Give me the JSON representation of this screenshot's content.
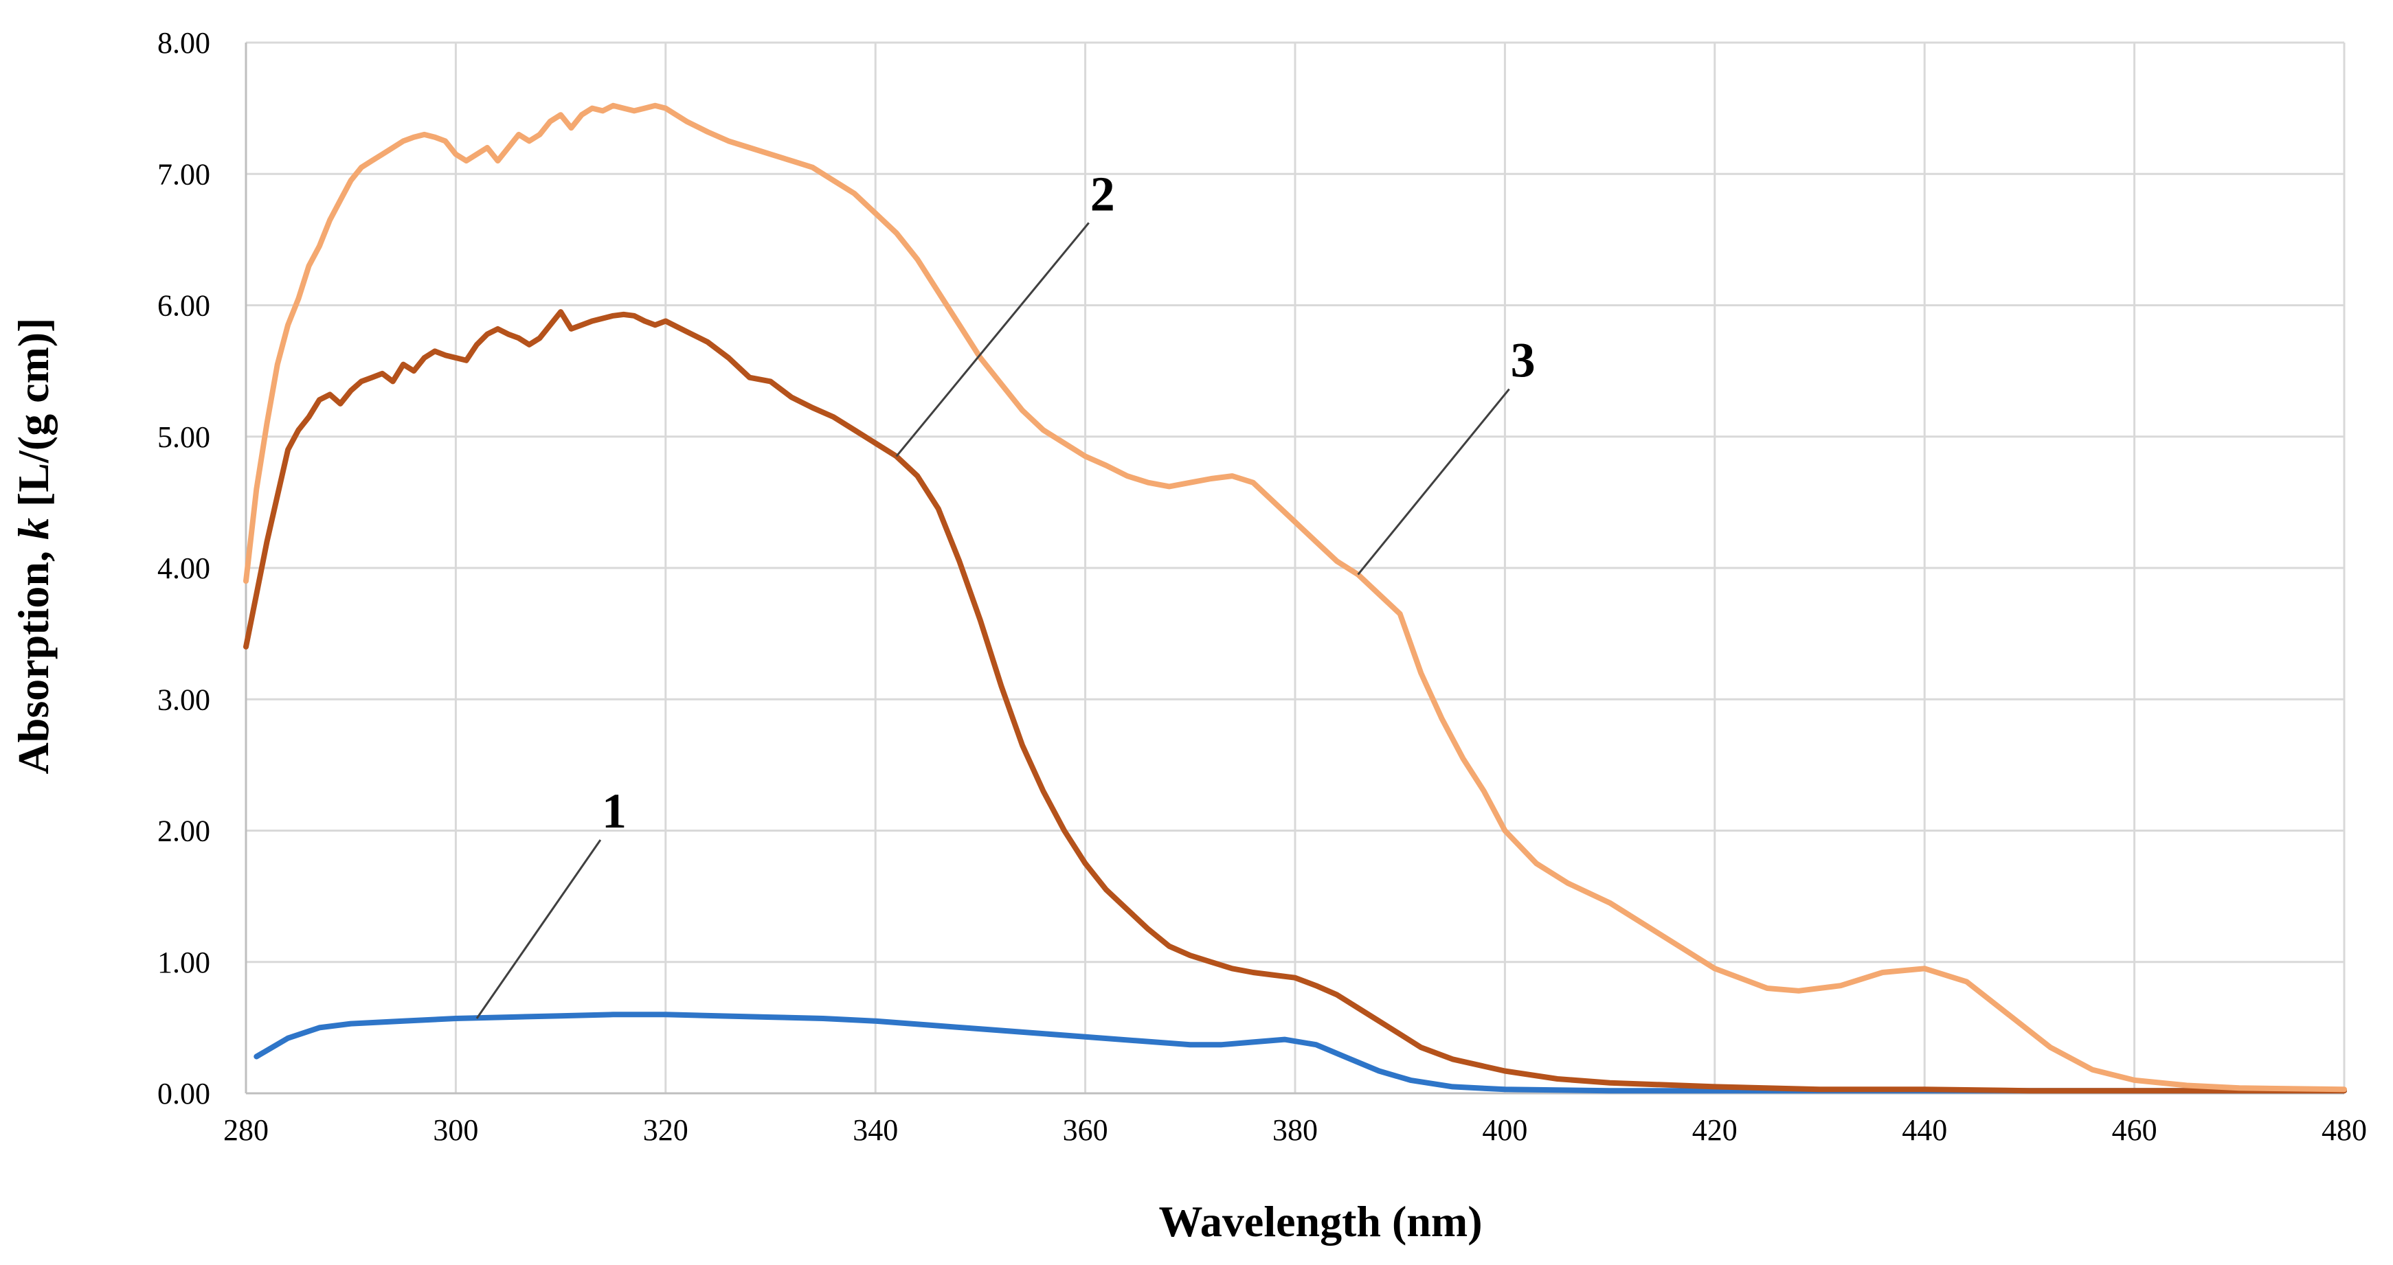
{
  "chart_data": {
    "type": "line",
    "title": "",
    "xlabel": "Wavelength (nm)",
    "ylabel_prefix": "Absorption, ",
    "ylabel_var": "k",
    "ylabel_suffix": " [L/(g cm)]",
    "xlim": [
      280,
      480
    ],
    "ylim": [
      0,
      8
    ],
    "xticks": [
      280,
      300,
      320,
      340,
      360,
      380,
      400,
      420,
      440,
      460,
      480
    ],
    "yticks": [
      0,
      1,
      2,
      3,
      4,
      5,
      6,
      7,
      8
    ],
    "xtick_labels": [
      "280",
      "300",
      "320",
      "340",
      "360",
      "380",
      "400",
      "420",
      "440",
      "460",
      "480"
    ],
    "ytick_labels": [
      "0.00",
      "1.00",
      "2.00",
      "3.00",
      "4.00",
      "5.00",
      "6.00",
      "7.00",
      "8.00"
    ],
    "grid": true,
    "legend": "none",
    "series": [
      {
        "name": "1",
        "color": "#2e75c8",
        "x": [
          281,
          284,
          287,
          290,
          295,
          300,
          305,
          310,
          315,
          320,
          325,
          330,
          335,
          340,
          345,
          350,
          355,
          360,
          365,
          370,
          373,
          376,
          379,
          382,
          385,
          388,
          391,
          395,
          400,
          410,
          420,
          440,
          460,
          480
        ],
        "y": [
          0.28,
          0.42,
          0.5,
          0.53,
          0.55,
          0.57,
          0.58,
          0.59,
          0.6,
          0.6,
          0.59,
          0.58,
          0.57,
          0.55,
          0.52,
          0.49,
          0.46,
          0.43,
          0.4,
          0.37,
          0.37,
          0.39,
          0.41,
          0.37,
          0.27,
          0.17,
          0.1,
          0.05,
          0.03,
          0.02,
          0.02,
          0.02,
          0.02,
          0.02
        ]
      },
      {
        "name": "2",
        "color": "#b5521b",
        "x": [
          280,
          281,
          282,
          283,
          284,
          285,
          286,
          287,
          288,
          289,
          290,
          291,
          292,
          293,
          294,
          295,
          296,
          297,
          298,
          299,
          300,
          301,
          302,
          303,
          304,
          305,
          306,
          307,
          308,
          309,
          310,
          311,
          312,
          313,
          314,
          315,
          316,
          317,
          318,
          319,
          320,
          322,
          324,
          326,
          328,
          330,
          332,
          334,
          336,
          338,
          340,
          342,
          344,
          346,
          348,
          350,
          352,
          354,
          356,
          358,
          360,
          362,
          364,
          366,
          368,
          370,
          372,
          374,
          376,
          378,
          380,
          382,
          384,
          386,
          388,
          390,
          392,
          395,
          400,
          405,
          410,
          420,
          430,
          440,
          450,
          460,
          480
        ],
        "y": [
          3.4,
          3.8,
          4.2,
          4.55,
          4.9,
          5.05,
          5.15,
          5.28,
          5.32,
          5.25,
          5.35,
          5.42,
          5.45,
          5.48,
          5.42,
          5.55,
          5.5,
          5.6,
          5.65,
          5.62,
          5.6,
          5.58,
          5.7,
          5.78,
          5.82,
          5.78,
          5.75,
          5.7,
          5.75,
          5.85,
          5.95,
          5.82,
          5.85,
          5.88,
          5.9,
          5.92,
          5.93,
          5.92,
          5.88,
          5.85,
          5.88,
          5.8,
          5.72,
          5.6,
          5.45,
          5.42,
          5.3,
          5.22,
          5.15,
          5.05,
          4.95,
          4.85,
          4.7,
          4.45,
          4.05,
          3.6,
          3.1,
          2.65,
          2.3,
          2.0,
          1.75,
          1.55,
          1.4,
          1.25,
          1.12,
          1.05,
          1.0,
          0.95,
          0.92,
          0.9,
          0.88,
          0.82,
          0.75,
          0.65,
          0.55,
          0.45,
          0.35,
          0.26,
          0.17,
          0.11,
          0.08,
          0.05,
          0.03,
          0.03,
          0.02,
          0.02,
          0.02
        ]
      },
      {
        "name": "3",
        "color": "#f4a870",
        "x": [
          280,
          281,
          282,
          283,
          284,
          285,
          286,
          287,
          288,
          289,
          290,
          291,
          292,
          293,
          294,
          295,
          296,
          297,
          298,
          299,
          300,
          301,
          302,
          303,
          304,
          305,
          306,
          307,
          308,
          309,
          310,
          311,
          312,
          313,
          314,
          315,
          316,
          317,
          318,
          319,
          320,
          322,
          324,
          326,
          328,
          330,
          332,
          334,
          336,
          338,
          340,
          342,
          344,
          346,
          348,
          350,
          352,
          354,
          356,
          358,
          360,
          362,
          364,
          366,
          368,
          370,
          372,
          374,
          376,
          378,
          380,
          382,
          384,
          386,
          388,
          390,
          392,
          394,
          396,
          398,
          400,
          403,
          406,
          410,
          415,
          420,
          425,
          428,
          432,
          436,
          440,
          444,
          448,
          452,
          456,
          460,
          465,
          470,
          480
        ],
        "y": [
          3.9,
          4.6,
          5.1,
          5.55,
          5.85,
          6.05,
          6.3,
          6.45,
          6.65,
          6.8,
          6.95,
          7.05,
          7.1,
          7.15,
          7.2,
          7.25,
          7.28,
          7.3,
          7.28,
          7.25,
          7.15,
          7.1,
          7.15,
          7.2,
          7.1,
          7.2,
          7.3,
          7.25,
          7.3,
          7.4,
          7.45,
          7.35,
          7.45,
          7.5,
          7.48,
          7.52,
          7.5,
          7.48,
          7.5,
          7.52,
          7.5,
          7.4,
          7.32,
          7.25,
          7.2,
          7.15,
          7.1,
          7.05,
          6.95,
          6.85,
          6.7,
          6.55,
          6.35,
          6.1,
          5.85,
          5.6,
          5.4,
          5.2,
          5.05,
          4.95,
          4.85,
          4.78,
          4.7,
          4.65,
          4.62,
          4.65,
          4.68,
          4.7,
          4.65,
          4.5,
          4.35,
          4.2,
          4.05,
          3.95,
          3.8,
          3.65,
          3.2,
          2.85,
          2.55,
          2.3,
          2.0,
          1.75,
          1.6,
          1.45,
          1.2,
          0.95,
          0.8,
          0.78,
          0.82,
          0.92,
          0.95,
          0.85,
          0.6,
          0.35,
          0.18,
          0.1,
          0.06,
          0.04,
          0.03
        ]
      }
    ],
    "annotations": [
      {
        "text": "1",
        "series": "1",
        "point_x": 302,
        "point_y": 0.57
      },
      {
        "text": "2",
        "series": "2",
        "point_x": 342,
        "point_y": 4.85
      },
      {
        "text": "3",
        "series": "3",
        "point_x": 386,
        "point_y": 3.95
      }
    ]
  }
}
